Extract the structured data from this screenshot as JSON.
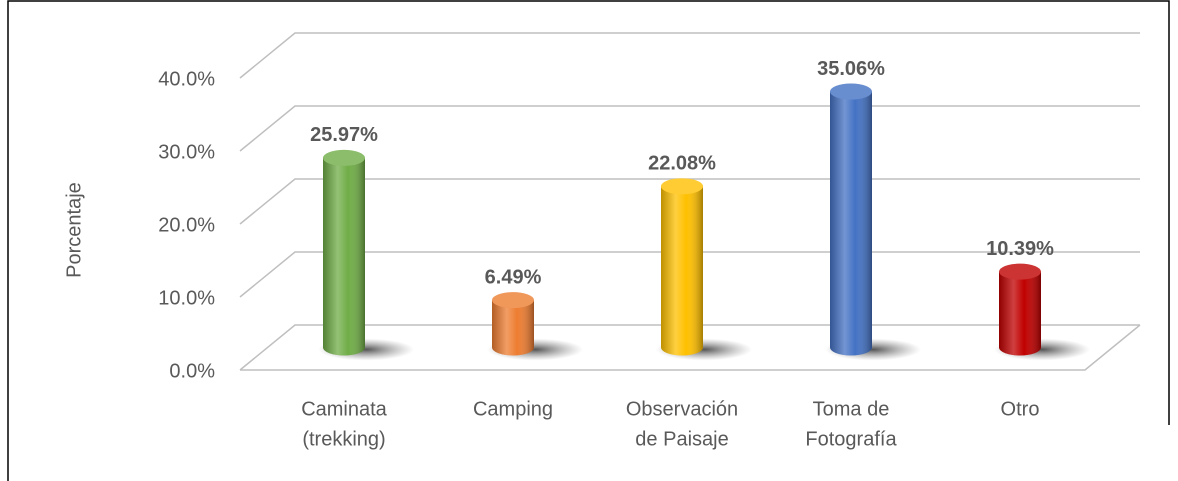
{
  "chart_data": {
    "type": "bar3d",
    "y_axis_label": "Porcentaje",
    "categories": [
      [
        "Caminata",
        "(trekking)"
      ],
      [
        "Camping"
      ],
      [
        "Observación",
        "de Paisaje"
      ],
      [
        "Toma de",
        "Fotografía"
      ],
      [
        "Otro"
      ]
    ],
    "values": [
      25.97,
      6.49,
      22.08,
      35.06,
      10.39
    ],
    "value_labels": [
      "25.97%",
      "6.49%",
      "22.08%",
      "35.06%",
      "10.39%"
    ],
    "colors": [
      "#70ad47",
      "#ed7d31",
      "#ffc000",
      "#4472c4",
      "#c00000"
    ],
    "ylim": [
      0,
      40
    ],
    "yticks": [
      {
        "value": 0,
        "label": "0.0%"
      },
      {
        "value": 10,
        "label": "10.0%"
      },
      {
        "value": 20,
        "label": "20.0%"
      },
      {
        "value": 30,
        "label": "30.0%"
      },
      {
        "value": 40,
        "label": "40.0%"
      }
    ],
    "grid": true
  }
}
